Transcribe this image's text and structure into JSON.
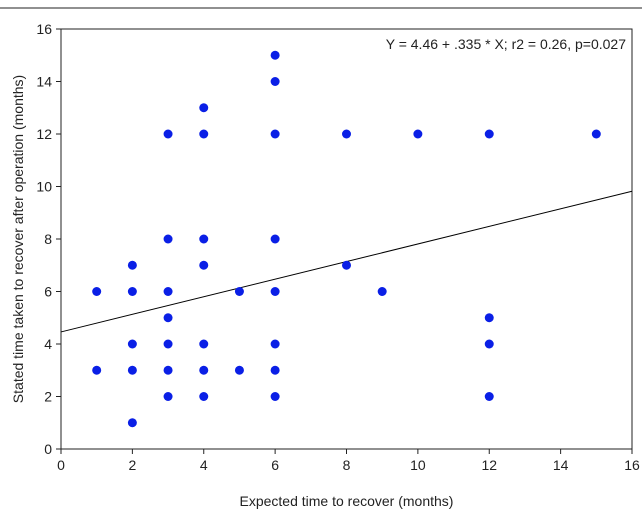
{
  "chart_data": {
    "type": "scatter",
    "title": "",
    "xlabel": "Expected time to recover (months)",
    "ylabel": "Stated time taken to recover after operation (months)",
    "xlim": [
      0,
      16
    ],
    "ylim": [
      0,
      16
    ],
    "xticks": [
      0,
      2,
      4,
      6,
      8,
      10,
      12,
      14,
      16
    ],
    "yticks": [
      0,
      2,
      4,
      6,
      8,
      10,
      12,
      14,
      16
    ],
    "grid": false,
    "legend": "none",
    "point_color": "#0a1fe6",
    "line_color": "#000000",
    "points": [
      {
        "x": 1,
        "y": 6
      },
      {
        "x": 1,
        "y": 3
      },
      {
        "x": 2,
        "y": 7
      },
      {
        "x": 2,
        "y": 6
      },
      {
        "x": 2,
        "y": 4
      },
      {
        "x": 2,
        "y": 3
      },
      {
        "x": 2,
        "y": 1
      },
      {
        "x": 3,
        "y": 12
      },
      {
        "x": 3,
        "y": 8
      },
      {
        "x": 3,
        "y": 6
      },
      {
        "x": 3,
        "y": 5
      },
      {
        "x": 3,
        "y": 4
      },
      {
        "x": 3,
        "y": 3
      },
      {
        "x": 3,
        "y": 2
      },
      {
        "x": 4,
        "y": 13
      },
      {
        "x": 4,
        "y": 12
      },
      {
        "x": 4,
        "y": 8
      },
      {
        "x": 4,
        "y": 7
      },
      {
        "x": 4,
        "y": 4
      },
      {
        "x": 4,
        "y": 3
      },
      {
        "x": 4,
        "y": 2
      },
      {
        "x": 5,
        "y": 6
      },
      {
        "x": 5,
        "y": 3
      },
      {
        "x": 6,
        "y": 15
      },
      {
        "x": 6,
        "y": 14
      },
      {
        "x": 6,
        "y": 12
      },
      {
        "x": 6,
        "y": 8
      },
      {
        "x": 6,
        "y": 6
      },
      {
        "x": 6,
        "y": 4
      },
      {
        "x": 6,
        "y": 3
      },
      {
        "x": 6,
        "y": 2
      },
      {
        "x": 8,
        "y": 12
      },
      {
        "x": 8,
        "y": 7
      },
      {
        "x": 9,
        "y": 6
      },
      {
        "x": 10,
        "y": 12
      },
      {
        "x": 12,
        "y": 12
      },
      {
        "x": 12,
        "y": 5
      },
      {
        "x": 12,
        "y": 4
      },
      {
        "x": 12,
        "y": 2
      },
      {
        "x": 15,
        "y": 12
      }
    ],
    "regression": {
      "intercept": 4.46,
      "slope": 0.335
    },
    "annotation": "Y = 4.46 + .335 * X; r2 = 0.26, p=0.027"
  }
}
